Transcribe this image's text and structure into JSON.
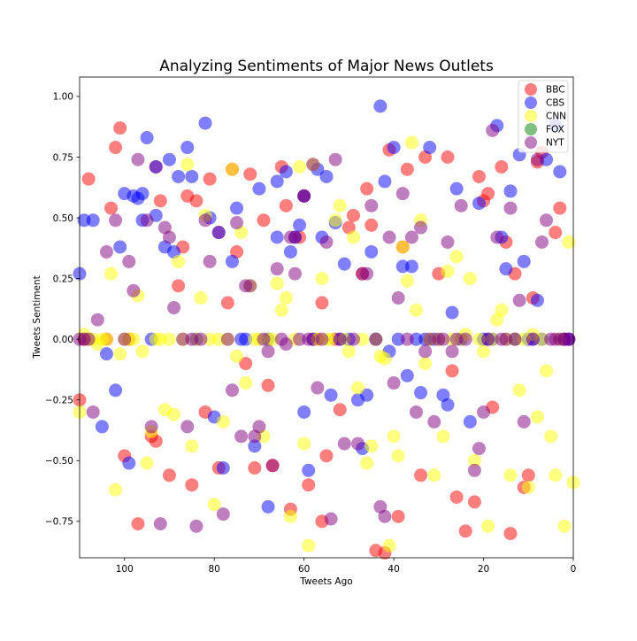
{
  "chart_data": {
    "type": "scatter",
    "title": "Analyzing Sentiments of Major News Outlets",
    "xlabel": "Tweets Ago",
    "ylabel": "Tweets Sentiment",
    "xlim": [
      110,
      0
    ],
    "ylim": [
      -0.9,
      1.08
    ],
    "x_ticks": [
      100,
      80,
      60,
      40,
      20,
      0
    ],
    "x_tick_labels": [
      "100",
      "80",
      "60",
      "40",
      "20",
      "0"
    ],
    "y_ticks": [
      1.0,
      0.75,
      0.5,
      0.25,
      0.0,
      -0.25,
      -0.5,
      -0.75
    ],
    "y_tick_labels": [
      "1.00",
      "0.75",
      "0.50",
      "0.25",
      "0.00",
      "−0.25",
      "−0.50",
      "−0.75"
    ],
    "grid": false,
    "legend_position": "top-right",
    "series": [
      {
        "name": "BBC",
        "color": "#ff0000",
        "x": [
          110,
          109,
          108,
          104,
          103,
          102,
          101,
          100,
          99,
          97,
          94,
          93,
          92,
          90,
          88,
          87,
          86,
          85,
          84,
          82,
          81,
          79,
          77,
          76,
          75,
          73,
          72,
          71,
          69,
          68,
          67,
          65,
          64,
          63,
          62,
          61,
          60,
          59,
          58,
          57,
          56,
          56,
          55,
          53,
          52,
          50,
          49,
          47,
          46,
          45,
          44,
          42,
          41,
          39,
          38,
          37,
          34,
          33,
          30,
          28,
          27,
          26,
          24,
          22,
          21,
          20,
          19,
          18,
          16,
          15,
          14,
          13,
          11,
          10,
          9,
          8,
          7,
          4,
          3,
          2,
          1
        ],
        "y": [
          -0.25,
          0,
          0.66,
          0,
          0.54,
          0.79,
          0.87,
          -0.48,
          0,
          -0.76,
          -0.4,
          -0.42,
          0.57,
          -0.56,
          0.22,
          0.38,
          0.59,
          -0.6,
          0.57,
          -0.3,
          0.66,
          -0.53,
          0.15,
          0.7,
          0.36,
          -0.1,
          0.68,
          -0.53,
          0.49,
          -0.19,
          -0.52,
          0.71,
          0.55,
          -0.7,
          0.42,
          0.42,
          0.59,
          -0.6,
          0,
          0,
          -0.75,
          0.15,
          -0.48,
          0,
          -0.29,
          0.46,
          0.51,
          0.27,
          0.62,
          0.47,
          -0.87,
          -0.88,
          0.78,
          -0.73,
          0.38,
          0.7,
          -0.56,
          0.75,
          0.27,
          0.75,
          -0.13,
          -0.65,
          -0.79,
          -0.67,
          0.67,
          0.57,
          0.6,
          -0.28,
          0.71,
          0.4,
          -0.8,
          0.27,
          -0.61,
          -0.56,
          0.17,
          0.73,
          0.77,
          0.44,
          0.54,
          0,
          0
        ]
      },
      {
        "name": "CBS",
        "color": "#0000ff",
        "x": [
          110,
          109,
          107,
          105,
          104,
          102,
          101,
          100,
          99,
          98,
          97,
          96,
          96,
          95,
          94,
          93,
          93,
          91,
          90,
          89,
          88,
          86,
          85,
          84,
          82,
          81,
          80,
          79,
          78,
          76,
          75,
          74,
          73,
          71,
          70,
          68,
          68,
          66,
          66,
          64,
          63,
          62,
          61,
          60,
          60,
          59,
          58,
          57,
          56,
          55,
          54,
          53,
          52,
          51,
          50,
          48,
          47,
          46,
          45,
          44,
          43,
          42,
          41,
          40,
          39,
          38,
          37,
          36,
          35,
          34,
          33,
          32,
          31,
          29,
          28,
          27,
          26,
          25,
          23,
          21,
          20,
          19,
          18,
          17,
          16,
          15,
          14,
          13,
          12,
          11,
          10,
          9,
          8,
          7,
          6,
          4,
          3,
          2,
          1
        ],
        "y": [
          0.27,
          0.49,
          0.49,
          -0.36,
          -0.06,
          -0.21,
          0.38,
          0.6,
          -0.51,
          0.59,
          0.58,
          0.6,
          0.49,
          0.83,
          0,
          0.71,
          0.51,
          0.38,
          0.74,
          0.36,
          0.67,
          0.79,
          0.67,
          0,
          0.89,
          0.5,
          -0.32,
          0.44,
          -0.53,
          0.32,
          0.54,
          0,
          0,
          -0.44,
          0.62,
          0,
          -0.69,
          0.42,
          0.65,
          0.69,
          0.36,
          0.42,
          0.47,
          0.59,
          -0.3,
          -0.54,
          0,
          0.7,
          0.42,
          0.67,
          -0.23,
          0.48,
          0,
          0.31,
          0,
          -0.25,
          -0.45,
          -0.23,
          0.36,
          0,
          0.96,
          0.65,
          -0.05,
          0.79,
          0,
          0.3,
          -0.15,
          0.3,
          0,
          -0.22,
          0,
          0.79,
          0,
          -0.23,
          -0.27,
          0.11,
          0.62,
          0,
          -0.34,
          0.56,
          0,
          0,
          0,
          0.88,
          0.42,
          0.29,
          0.61,
          0,
          0.76,
          0.32,
          0,
          0,
          0.16,
          0,
          0.74,
          0.88,
          0.69,
          0,
          0
        ]
      },
      {
        "name": "CNN",
        "color": "#ffff00",
        "x": [
          110,
          109,
          108,
          107,
          106,
          105,
          104,
          103,
          102,
          101,
          100,
          99,
          98,
          97,
          96,
          95,
          94,
          93,
          92,
          91,
          90,
          89,
          88,
          87,
          86,
          85,
          84,
          83,
          82,
          81,
          80,
          79,
          78,
          77,
          76,
          75,
          74,
          73,
          72,
          71,
          70,
          69,
          68,
          67,
          66,
          65,
          64,
          63,
          62,
          61,
          60,
          59,
          58,
          57,
          56,
          55,
          54,
          53,
          52,
          51,
          50,
          49,
          48,
          47,
          46,
          45,
          44,
          43,
          42,
          41,
          40,
          39,
          38,
          37,
          36,
          35,
          34,
          33,
          32,
          31,
          30,
          29,
          28,
          27,
          26,
          25,
          24,
          23,
          22,
          21,
          20,
          19,
          18,
          17,
          16,
          15,
          14,
          13,
          12,
          11,
          10,
          9,
          8,
          7,
          6,
          5,
          4,
          3,
          2,
          1,
          0
        ],
        "y": [
          -0.3,
          0.02,
          0,
          0,
          -0.02,
          0,
          0,
          0.27,
          -0.62,
          -0.06,
          0,
          0,
          0,
          0.18,
          -0.05,
          -0.51,
          -0.38,
          0,
          0,
          -0.29,
          0,
          -0.31,
          0.32,
          0,
          0.72,
          -0.44,
          0,
          0.17,
          0.51,
          0,
          -0.68,
          0,
          -0.34,
          0,
          0.7,
          -0.07,
          0.44,
          -0.18,
          0.22,
          0,
          0,
          -0.4,
          0,
          0,
          0.23,
          0.12,
          0.17,
          -0.73,
          0,
          0.71,
          -0.43,
          -0.85,
          0.72,
          0,
          0.25,
          0,
          0,
          0.49,
          0.55,
          0,
          -0.05,
          0.42,
          -0.2,
          0,
          -0.51,
          -0.44,
          0,
          -0.07,
          -0.08,
          -0.85,
          -0.4,
          -0.48,
          0.38,
          0.24,
          0.81,
          0.12,
          0.49,
          -0.1,
          0,
          -0.56,
          0,
          -0.4,
          0.28,
          0,
          0.34,
          0,
          0.02,
          0.25,
          -0.5,
          0,
          -0.05,
          -0.77,
          0,
          0.08,
          0.12,
          0,
          -0.56,
          0,
          -0.21,
          0,
          -0.61,
          0.02,
          -0.32,
          0,
          -0.13,
          -0.4,
          -0.56,
          0,
          -0.77,
          0.4,
          -0.59
        ]
      },
      {
        "name": "FOX",
        "color": "#008000",
        "x": [],
        "y": []
      },
      {
        "name": "NYT",
        "color": "#800080",
        "x": [
          110,
          109,
          108,
          107,
          106,
          104,
          102,
          100,
          99,
          98,
          97,
          95,
          94,
          93,
          92,
          91,
          90,
          89,
          87,
          86,
          85,
          84,
          83,
          82,
          81,
          79,
          78,
          77,
          76,
          75,
          74,
          73,
          72,
          71,
          70,
          69,
          68,
          67,
          66,
          65,
          64,
          63,
          62,
          61,
          60,
          59,
          58,
          57,
          56,
          55,
          54,
          53,
          52,
          51,
          49,
          48,
          47,
          46,
          45,
          44,
          43,
          42,
          41,
          40,
          39,
          38,
          37,
          36,
          35,
          34,
          33,
          32,
          31,
          30,
          29,
          28,
          27,
          26,
          25,
          24,
          22,
          21,
          20,
          19,
          18,
          17,
          16,
          15,
          14,
          13,
          12,
          11,
          9,
          8,
          7,
          6,
          5,
          4,
          3,
          2,
          1
        ],
        "y": [
          0,
          0,
          0,
          -0.3,
          0.08,
          0.36,
          0.49,
          0,
          0.32,
          0.2,
          0.74,
          0.49,
          -0.36,
          0.71,
          -0.76,
          0.46,
          0.42,
          0.13,
          0,
          -0.36,
          0,
          -0.77,
          0,
          0.49,
          0.32,
          0.44,
          -0.72,
          0,
          -0.21,
          0.48,
          -0.4,
          0.22,
          0.22,
          -0.4,
          -0.36,
          0,
          -0.05,
          -0.52,
          0.29,
          0,
          -0.02,
          0.42,
          0.27,
          0,
          0.59,
          0,
          0.72,
          -0.2,
          0,
          0.4,
          -0.74,
          0.74,
          0,
          -0.43,
          0,
          -0.43,
          0.27,
          0.27,
          0.55,
          0,
          -0.69,
          -0.73,
          0.42,
          -0.18,
          0.17,
          0.6,
          0,
          0.42,
          -0.3,
          0.46,
          -0.05,
          0,
          -0.34,
          0,
          0,
          0.4,
          -0.05,
          0,
          0.55,
          0,
          -0.54,
          -0.45,
          -0.3,
          0,
          0.86,
          0.42,
          0,
          0,
          0.54,
          0,
          0.16,
          -0.34,
          0,
          0.74,
          0.4,
          0.49,
          0,
          0,
          0,
          0,
          0
        ]
      }
    ]
  }
}
